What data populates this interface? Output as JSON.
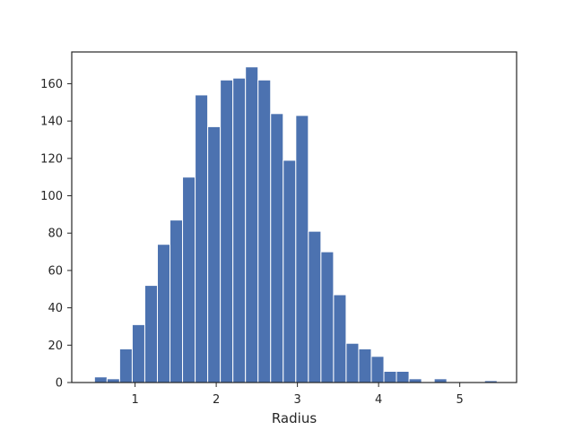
{
  "chart_data": {
    "type": "bar",
    "title": "",
    "xlabel": "Radius",
    "ylabel": "",
    "xlim": [
      0.22,
      5.7
    ],
    "ylim": [
      0,
      177
    ],
    "grid": false,
    "bar_color": "#4c72b0",
    "edge_color": "#ffffff",
    "axis_color": "#262626",
    "bin_edges": [
      0.5,
      0.655,
      0.81,
      0.965,
      1.12,
      1.275,
      1.43,
      1.585,
      1.74,
      1.895,
      2.05,
      2.205,
      2.36,
      2.515,
      2.67,
      2.825,
      2.98,
      3.135,
      3.29,
      3.445,
      3.6,
      3.755,
      3.91,
      4.065,
      4.22,
      4.375,
      4.53,
      4.685,
      4.84,
      4.995,
      5.15,
      5.305,
      5.46
    ],
    "values": [
      3,
      2,
      18,
      31,
      52,
      74,
      87,
      110,
      154,
      137,
      162,
      163,
      169,
      162,
      144,
      119,
      143,
      81,
      70,
      47,
      21,
      18,
      14,
      6,
      6,
      2,
      0,
      2,
      0,
      0,
      0,
      1
    ],
    "x_ticks": [
      1,
      2,
      3,
      4,
      5
    ],
    "x_tick_labels": [
      "1",
      "2",
      "3",
      "4",
      "5"
    ],
    "y_ticks": [
      0,
      20,
      40,
      60,
      80,
      100,
      120,
      140,
      160
    ],
    "y_tick_labels": [
      "0",
      "20",
      "40",
      "60",
      "80",
      "100",
      "120",
      "140",
      "160"
    ]
  }
}
